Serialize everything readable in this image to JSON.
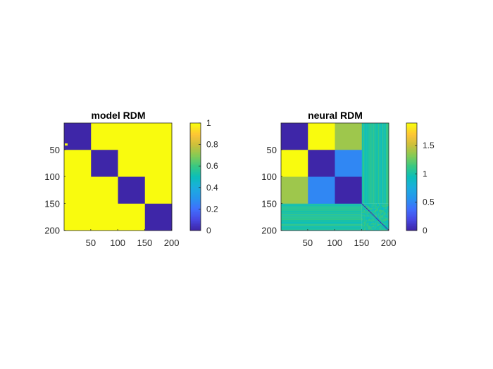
{
  "figure": {
    "background": "#ffffff",
    "colormap": "parula"
  },
  "chart_data": [
    {
      "type": "heatmap",
      "title": "model RDM",
      "size": 200,
      "block_size": 50,
      "block_values": [
        [
          0,
          1,
          1,
          1
        ],
        [
          1,
          0,
          1,
          1
        ],
        [
          1,
          1,
          0,
          1
        ],
        [
          1,
          1,
          1,
          0
        ]
      ],
      "xticks": [
        50,
        100,
        150,
        200
      ],
      "yticks": [
        50,
        100,
        150,
        200
      ],
      "xlim": [
        0.5,
        200.5
      ],
      "ylim": [
        0.5,
        200.5
      ],
      "colorbar": {
        "clim": [
          0,
          1
        ],
        "ticks": [
          "0",
          "0.2",
          "0.4",
          "0.6",
          "0.8",
          "1"
        ],
        "tick_values": [
          0,
          0.2,
          0.4,
          0.6,
          0.8,
          1
        ]
      },
      "colors": {
        "low": "#3e26a8",
        "high": "#f9fb0e"
      }
    },
    {
      "type": "heatmap",
      "title": "neural RDM",
      "size": 200,
      "block_size": 50,
      "block_values": [
        [
          0,
          1.9,
          1.4,
          1.0
        ],
        [
          1.9,
          0,
          0.5,
          1.0
        ],
        [
          1.4,
          0.5,
          0,
          1.0
        ],
        [
          1.0,
          1.0,
          1.0,
          1.0
        ]
      ],
      "noisy_region": "rows/cols 151-200 vary around 1 with zero diagonal",
      "xticks": [
        50,
        100,
        150,
        200
      ],
      "yticks": [
        50,
        100,
        150,
        200
      ],
      "xlim": [
        0.5,
        200.5
      ],
      "ylim": [
        0.5,
        200.5
      ],
      "colorbar": {
        "clim": [
          0,
          1.9
        ],
        "ticks": [
          "0",
          "0.5",
          "1",
          "1.5"
        ],
        "tick_values": [
          0,
          0.5,
          1,
          1.5
        ]
      }
    }
  ]
}
